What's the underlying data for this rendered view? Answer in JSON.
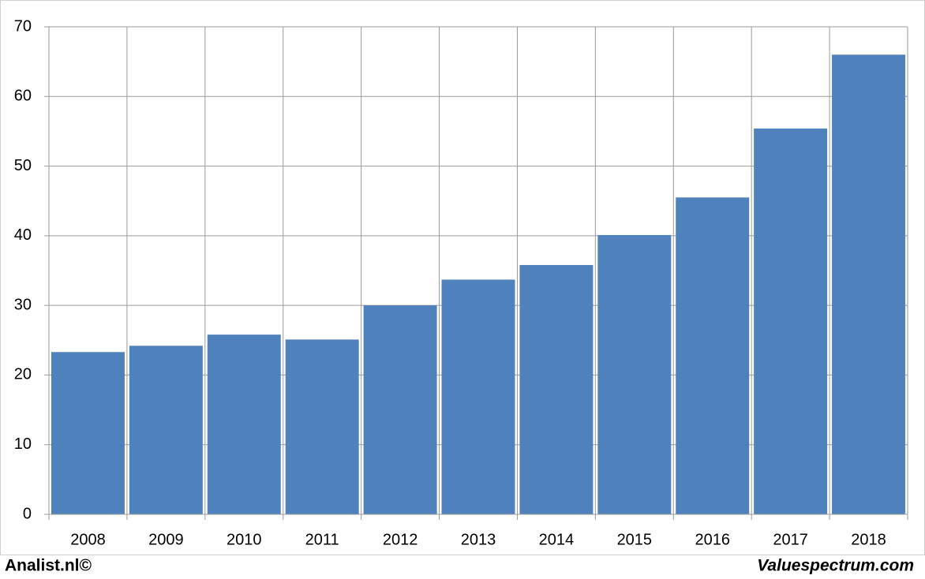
{
  "chart_data": {
    "type": "bar",
    "categories": [
      "2008",
      "2009",
      "2010",
      "2011",
      "2012",
      "2013",
      "2014",
      "2015",
      "2016",
      "2017",
      "2018"
    ],
    "values": [
      23.3,
      24.2,
      25.8,
      25.1,
      30.0,
      33.7,
      35.8,
      40.1,
      45.5,
      55.4,
      66.0
    ],
    "color": "#4f81bd",
    "ylim": [
      0,
      70
    ],
    "yticks": [
      0,
      10,
      20,
      30,
      40,
      50,
      60,
      70
    ],
    "grid": true,
    "annotations": [
      "Analist.nl©",
      "Valuespectrum.com"
    ]
  }
}
